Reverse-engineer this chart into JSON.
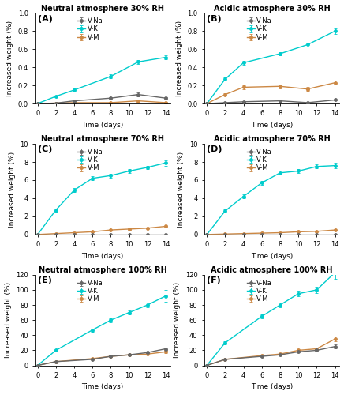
{
  "panels": [
    {
      "label": "A",
      "title": "Neutral atmosphere 30% RH",
      "ylim": [
        0,
        1.0
      ],
      "yticks": [
        0.0,
        0.2,
        0.4,
        0.6,
        0.8,
        1.0
      ],
      "x": [
        0,
        2,
        4,
        8,
        11,
        14
      ],
      "VNa": [
        0.0,
        0.005,
        0.03,
        0.06,
        0.1,
        0.06
      ],
      "VNa_err": [
        0.0,
        0.005,
        0.01,
        0.01,
        0.02,
        0.01
      ],
      "VK": [
        0.0,
        0.08,
        0.15,
        0.3,
        0.46,
        0.51
      ],
      "VK_err": [
        0.0,
        0.01,
        0.02,
        0.02,
        0.02,
        0.02
      ],
      "VM": [
        0.0,
        0.005,
        0.01,
        0.01,
        0.03,
        0.01
      ],
      "VM_err": [
        0.0,
        0.005,
        0.005,
        0.005,
        0.01,
        0.005
      ]
    },
    {
      "label": "B",
      "title": "Acidic atmosphere 30% RH",
      "ylim": [
        0,
        1.0
      ],
      "yticks": [
        0.0,
        0.2,
        0.4,
        0.6,
        0.8,
        1.0
      ],
      "x": [
        0,
        2,
        4,
        8,
        11,
        14
      ],
      "VNa": [
        0.0,
        0.01,
        0.02,
        0.03,
        0.01,
        0.04
      ],
      "VNa_err": [
        0.0,
        0.005,
        0.005,
        0.005,
        0.005,
        0.005
      ],
      "VK": [
        0.0,
        0.27,
        0.45,
        0.55,
        0.65,
        0.8
      ],
      "VK_err": [
        0.0,
        0.02,
        0.02,
        0.02,
        0.02,
        0.03
      ],
      "VM": [
        0.0,
        0.1,
        0.18,
        0.19,
        0.16,
        0.23
      ],
      "VM_err": [
        0.0,
        0.01,
        0.02,
        0.02,
        0.02,
        0.02
      ]
    },
    {
      "label": "C",
      "title": "Neutral atmosphere 70% RH",
      "ylim": [
        0,
        10
      ],
      "yticks": [
        0,
        2,
        4,
        6,
        8,
        10
      ],
      "x": [
        0,
        2,
        4,
        6,
        8,
        10,
        12,
        14
      ],
      "VNa": [
        0.0,
        0.0,
        0.0,
        0.0,
        0.0,
        0.0,
        0.0,
        0.0
      ],
      "VNa_err": [
        0.0,
        0.0,
        0.0,
        0.0,
        0.0,
        0.0,
        0.0,
        0.0
      ],
      "VK": [
        0.0,
        2.7,
        4.9,
        6.2,
        6.5,
        7.0,
        7.4,
        7.9
      ],
      "VK_err": [
        0.0,
        0.15,
        0.2,
        0.2,
        0.2,
        0.2,
        0.2,
        0.3
      ],
      "VM": [
        0.0,
        0.1,
        0.2,
        0.3,
        0.5,
        0.6,
        0.7,
        0.9
      ],
      "VM_err": [
        0.0,
        0.02,
        0.03,
        0.03,
        0.04,
        0.05,
        0.06,
        0.07
      ]
    },
    {
      "label": "D",
      "title": "Acidic atmosphere 70% RH",
      "ylim": [
        0,
        10
      ],
      "yticks": [
        0,
        2,
        4,
        6,
        8,
        10
      ],
      "x": [
        0,
        2,
        4,
        6,
        8,
        10,
        12,
        14
      ],
      "VNa": [
        0.0,
        0.0,
        0.0,
        0.0,
        0.0,
        0.0,
        0.0,
        0.0
      ],
      "VNa_err": [
        0.0,
        0.0,
        0.0,
        0.0,
        0.0,
        0.0,
        0.0,
        0.0
      ],
      "VK": [
        0.0,
        2.6,
        4.2,
        5.7,
        6.8,
        7.0,
        7.5,
        7.6
      ],
      "VK_err": [
        0.0,
        0.15,
        0.2,
        0.2,
        0.2,
        0.2,
        0.2,
        0.3
      ],
      "VM": [
        0.0,
        0.05,
        0.1,
        0.15,
        0.2,
        0.3,
        0.35,
        0.5
      ],
      "VM_err": [
        0.0,
        0.01,
        0.02,
        0.02,
        0.02,
        0.03,
        0.03,
        0.04
      ]
    },
    {
      "label": "E",
      "title": "Neutral atmosphere 100% RH",
      "ylim": [
        0,
        120
      ],
      "yticks": [
        0,
        20,
        40,
        60,
        80,
        100,
        120
      ],
      "x": [
        0,
        2,
        6,
        8,
        10,
        12,
        14
      ],
      "VNa": [
        0.0,
        5.0,
        8.0,
        12.0,
        14.0,
        17.0,
        22.0
      ],
      "VNa_err": [
        0.0,
        0.5,
        0.5,
        0.8,
        0.8,
        1.0,
        1.5
      ],
      "VK": [
        0.0,
        20.0,
        47.0,
        60.0,
        70.0,
        80.0,
        92.0
      ],
      "VK_err": [
        0.0,
        1.5,
        2.0,
        2.5,
        2.5,
        3.0,
        8.0
      ],
      "VM": [
        0.0,
        5.0,
        9.0,
        12.0,
        14.0,
        15.0,
        18.0
      ],
      "VM_err": [
        0.0,
        0.5,
        0.8,
        0.8,
        0.8,
        0.8,
        1.5
      ]
    },
    {
      "label": "F",
      "title": "Acidic atmosphere 100% RH",
      "ylim": [
        0,
        120
      ],
      "yticks": [
        0,
        20,
        40,
        60,
        80,
        100,
        120
      ],
      "x": [
        0,
        2,
        6,
        8,
        10,
        12,
        14
      ],
      "VNa": [
        0.0,
        8.0,
        12.0,
        14.0,
        18.0,
        20.0,
        25.0
      ],
      "VNa_err": [
        0.0,
        0.5,
        0.8,
        0.8,
        0.8,
        1.0,
        2.5
      ],
      "VK": [
        0.0,
        30.0,
        65.0,
        80.0,
        95.0,
        100.0,
        123.0
      ],
      "VK_err": [
        0.0,
        2.0,
        3.0,
        3.0,
        3.5,
        4.0,
        8.0
      ],
      "VM": [
        0.0,
        8.0,
        13.0,
        15.0,
        20.0,
        22.0,
        35.0
      ],
      "VM_err": [
        0.0,
        0.5,
        0.8,
        0.8,
        0.8,
        1.0,
        3.5
      ]
    }
  ],
  "color_VNa": "#666666",
  "color_VK": "#00CCCC",
  "color_VM": "#CC8844",
  "xlabel": "Time (days)",
  "ylabel": "Increased weight (%)",
  "xticks": [
    0,
    2,
    4,
    6,
    8,
    10,
    12,
    14
  ],
  "marker": "o",
  "markersize": 2.5,
  "linewidth": 1.0,
  "legend_fontsize": 6.0,
  "axis_label_fontsize": 6.5,
  "tick_fontsize": 6.0,
  "title_fontsize": 7.0,
  "panel_label_fontsize": 8.0,
  "fig_width": 4.36,
  "fig_height": 5.0,
  "dpi": 100
}
